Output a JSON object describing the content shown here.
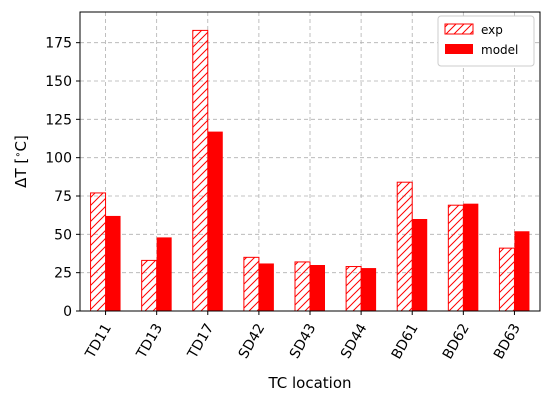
{
  "chart_data": {
    "type": "bar",
    "title": "",
    "xlabel": "TC location",
    "ylabel": "ΔT [$^\\circ$C]",
    "ylabel_parts": [
      "ΔT [",
      "∘",
      "C]"
    ],
    "categories": [
      "TD11",
      "TD13",
      "TD17",
      "SD42",
      "SD43",
      "SD44",
      "BD61",
      "BD62",
      "BD63"
    ],
    "series": [
      {
        "name": "exp",
        "style": "hatched",
        "color": "#ff0000",
        "values": [
          77,
          33,
          183,
          35,
          32,
          29,
          84,
          69,
          41
        ]
      },
      {
        "name": "model",
        "style": "solid",
        "color": "#ff0000",
        "values": [
          62,
          48,
          117,
          31,
          30,
          28,
          60,
          70,
          52
        ]
      }
    ],
    "ylim": [
      0,
      195
    ],
    "yticks": [
      0,
      25,
      50,
      75,
      100,
      125,
      150,
      175
    ],
    "grid": true,
    "legend_position": "top-right"
  }
}
